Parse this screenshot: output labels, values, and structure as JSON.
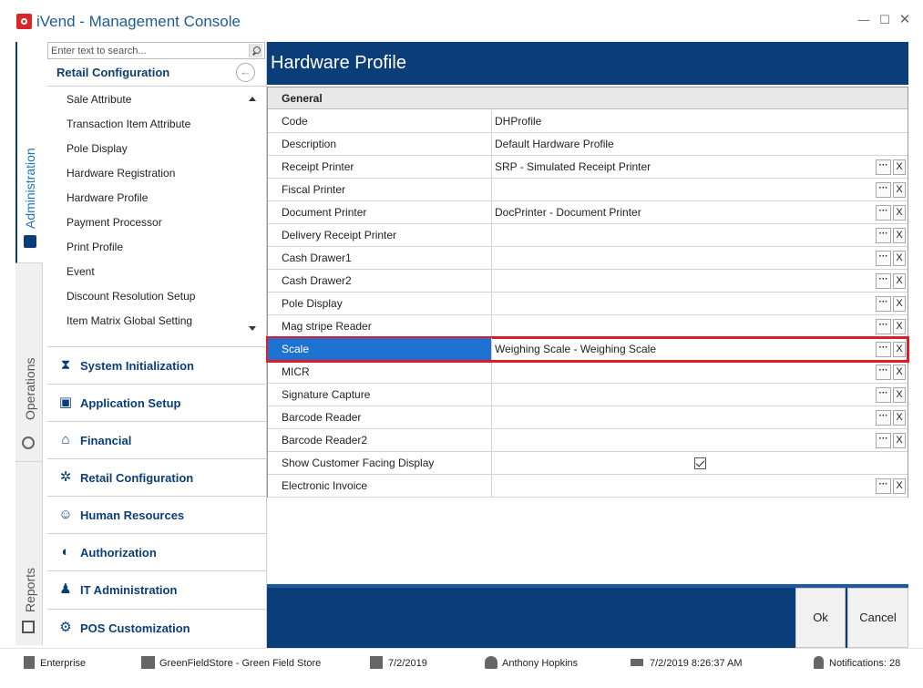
{
  "window": {
    "title": "iVend - Management Console",
    "min_glyph": "—",
    "max_glyph": "☐",
    "close_glyph": "✕"
  },
  "vtabs": [
    {
      "label": "Administration",
      "icon": "id-card-icon"
    },
    {
      "label": "Operations",
      "icon": "gear-icon"
    },
    {
      "label": "Reports",
      "icon": "report-icon"
    }
  ],
  "nav": {
    "search_placeholder": "Enter text to search...",
    "header": "Retail Configuration",
    "items": [
      "Sale Attribute",
      "Transaction Item Attribute",
      "Pole Display",
      "Hardware Registration",
      "Hardware Profile",
      "Payment Processor",
      "Print Profile",
      "Event",
      "Discount Resolution Setup",
      "Item Matrix Global Setting"
    ],
    "sections": [
      {
        "label": "System Initialization",
        "icon": "hourglass-icon",
        "glyph": "⧗"
      },
      {
        "label": "Application Setup",
        "icon": "window-icon",
        "glyph": "▣"
      },
      {
        "label": "Financial",
        "icon": "bank-icon",
        "glyph": "⌂"
      },
      {
        "label": "Retail Configuration",
        "icon": "gears-icon",
        "glyph": "✲"
      },
      {
        "label": "Human Resources",
        "icon": "user-search-icon",
        "glyph": "☺"
      },
      {
        "label": "Authorization",
        "icon": "shield-icon",
        "glyph": "◐"
      },
      {
        "label": "IT Administration",
        "icon": "person-icon",
        "glyph": "♟"
      },
      {
        "label": "POS Customization",
        "icon": "wrench-icon",
        "glyph": "⚙"
      }
    ]
  },
  "main": {
    "title": "Hardware Profile",
    "section": "General",
    "rows": [
      {
        "name": "Code",
        "value": "DHProfile",
        "buttons": false
      },
      {
        "name": "Description",
        "value": "Default Hardware Profile",
        "buttons": false
      },
      {
        "name": "Receipt Printer",
        "value": "SRP - Simulated Receipt Printer",
        "buttons": true
      },
      {
        "name": "Fiscal Printer",
        "value": "",
        "buttons": true
      },
      {
        "name": "Document Printer",
        "value": "DocPrinter - Document Printer",
        "buttons": true
      },
      {
        "name": "Delivery Receipt Printer",
        "value": "",
        "buttons": true
      },
      {
        "name": "Cash Drawer1",
        "value": "",
        "buttons": true
      },
      {
        "name": "Cash Drawer2",
        "value": "",
        "buttons": true
      },
      {
        "name": "Pole Display",
        "value": "",
        "buttons": true
      },
      {
        "name": "Mag stripe Reader",
        "value": "",
        "buttons": true
      },
      {
        "name": "Scale",
        "value": "Weighing Scale - Weighing Scale",
        "buttons": true,
        "selected": true
      },
      {
        "name": "MICR",
        "value": "",
        "buttons": true
      },
      {
        "name": "Signature Capture",
        "value": "",
        "buttons": true
      },
      {
        "name": "Barcode Reader",
        "value": "",
        "buttons": true
      },
      {
        "name": "Barcode Reader2",
        "value": "",
        "buttons": true
      },
      {
        "name": "Show Customer Facing Display",
        "value": "",
        "checkbox": true,
        "checked": true
      },
      {
        "name": "Electronic Invoice",
        "value": "",
        "buttons": true
      }
    ],
    "ellipsis_label": "···",
    "clear_label": "X",
    "ok_label": "Ok",
    "cancel_label": "Cancel"
  },
  "status": {
    "enterprise": "Enterprise",
    "store": "GreenFieldStore - Green Field Store",
    "date": "7/2/2019",
    "user": "Anthony Hopkins",
    "login_time": "7/2/2019 8:26:37 AM",
    "notifications": "Notifications: 28"
  }
}
